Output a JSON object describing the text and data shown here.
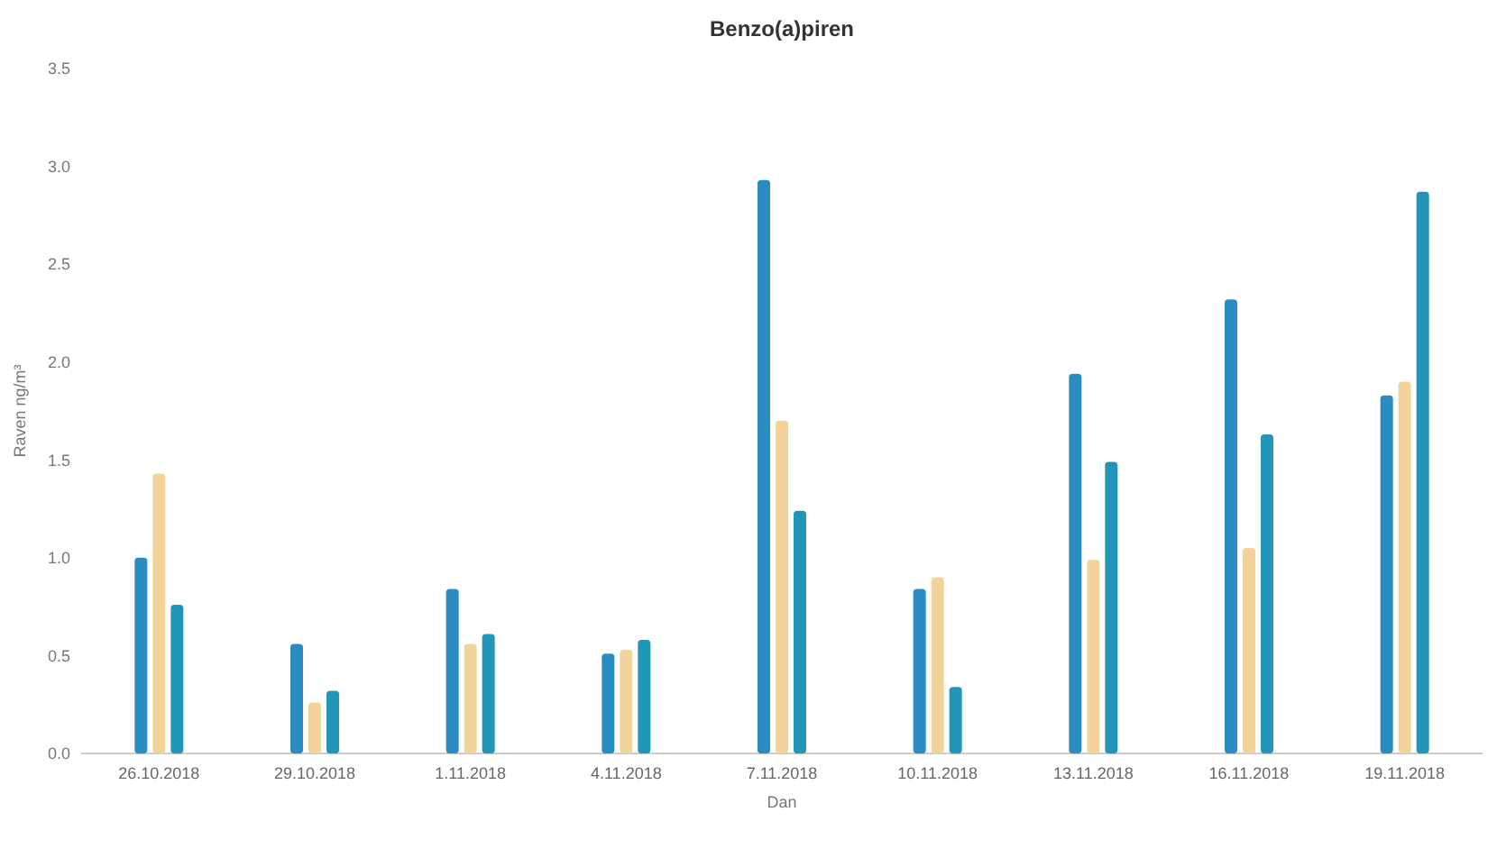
{
  "chart_data": {
    "type": "bar",
    "title": "Benzo(a)piren",
    "xlabel": "Dan",
    "ylabel": "Raven ng/m³",
    "categories": [
      "26.10.2018",
      "29.10.2018",
      "1.11.2018",
      "4.11.2018",
      "7.11.2018",
      "10.11.2018",
      "13.11.2018",
      "16.11.2018",
      "19.11.2018"
    ],
    "series": [
      {
        "color": "#2b8cc4",
        "values": [
          1.0,
          0.56,
          0.84,
          0.51,
          2.93,
          0.84,
          1.94,
          2.32,
          1.83
        ]
      },
      {
        "color": "#f2d49b",
        "values": [
          1.43,
          0.26,
          0.56,
          0.53,
          1.7,
          0.9,
          0.99,
          1.05,
          1.9
        ]
      },
      {
        "color": "#2196b8",
        "values": [
          0.76,
          0.32,
          0.61,
          0.58,
          1.24,
          0.34,
          1.49,
          1.63,
          2.87
        ]
      }
    ],
    "ylim": [
      0,
      3.5
    ],
    "yticks": [
      {
        "value": 0,
        "label": "0.0"
      },
      {
        "value": 0.5,
        "label": "0.5"
      },
      {
        "value": 1,
        "label": "1.0"
      },
      {
        "value": 1.5,
        "label": "1.5"
      },
      {
        "value": 2,
        "label": "2.0"
      },
      {
        "value": 2.5,
        "label": "2.5"
      },
      {
        "value": 3,
        "label": "3.0"
      },
      {
        "value": 3.5,
        "label": "3.5"
      }
    ],
    "grid": false
  }
}
